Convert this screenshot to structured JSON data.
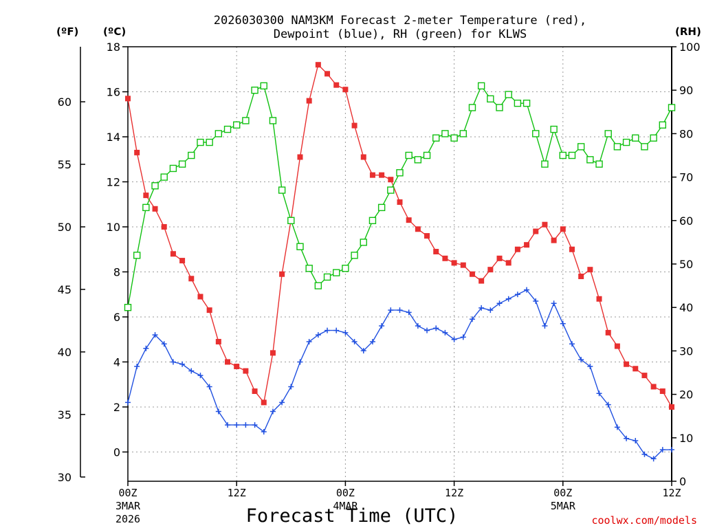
{
  "chart_data": {
    "type": "line",
    "title_line1": "2026030300 NAM3KM Forecast 2-meter Temperature (red),",
    "title_line2": "Dewpoint (blue), RH (green) for KLWS",
    "xlabel": "Forecast Time (UTC)",
    "credit": "coolwx.com/models",
    "units": {
      "fahrenheit": "(ºF)",
      "celsius": "(ºC)",
      "rh": "(RH)"
    },
    "x_range": [
      0,
      60
    ],
    "celsius_range": [
      -1.3,
      18
    ],
    "celsius_ticks": [
      "0",
      "2",
      "4",
      "6",
      "8",
      "10",
      "12",
      "14",
      "16",
      "18"
    ],
    "fahrenheit_ticks": [
      "30",
      "35",
      "40",
      "45",
      "50",
      "55",
      "60"
    ],
    "rh_range": [
      0,
      100
    ],
    "rh_ticks": [
      "0",
      "10",
      "20",
      "30",
      "40",
      "50",
      "60",
      "70",
      "80",
      "90",
      "100"
    ],
    "x_ticks": [
      {
        "hour": 0,
        "label": "00Z",
        "date": "3MAR",
        "year": "2026"
      },
      {
        "hour": 12,
        "label": "12Z",
        "date": "",
        "year": ""
      },
      {
        "hour": 24,
        "label": "00Z",
        "date": "4MAR",
        "year": ""
      },
      {
        "hour": 36,
        "label": "12Z",
        "date": "",
        "year": ""
      },
      {
        "hour": 48,
        "label": "00Z",
        "date": "5MAR",
        "year": ""
      },
      {
        "hour": 60,
        "label": "12Z",
        "date": "",
        "year": ""
      }
    ],
    "series": [
      {
        "name": "Temperature",
        "unit": "C",
        "color": "#e83030",
        "marker": "filled-square",
        "values": [
          15.7,
          13.3,
          11.4,
          10.8,
          10.0,
          8.8,
          8.5,
          7.7,
          6.9,
          6.3,
          4.9,
          4.0,
          3.8,
          3.6,
          2.7,
          2.2,
          4.4,
          7.9,
          10.3,
          13.1,
          15.6,
          17.2,
          16.8,
          16.3,
          16.1,
          14.5,
          13.1,
          12.3,
          12.3,
          12.1,
          11.1,
          10.3,
          9.9,
          9.6,
          8.9,
          8.6,
          8.4,
          8.3,
          7.9,
          7.6,
          8.1,
          8.6,
          8.4,
          9.0,
          9.2,
          9.8,
          10.1,
          9.4,
          9.9,
          9.0,
          7.8,
          8.1,
          6.8,
          5.3,
          4.7,
          3.9,
          3.7,
          3.4,
          2.9,
          2.7,
          2.0
        ]
      },
      {
        "name": "Dewpoint",
        "unit": "C",
        "color": "#2050e0",
        "marker": "plus",
        "values": [
          2.2,
          3.8,
          4.6,
          5.2,
          4.8,
          4.0,
          3.9,
          3.6,
          3.4,
          2.9,
          1.8,
          1.2,
          1.2,
          1.2,
          1.2,
          0.9,
          1.8,
          2.2,
          2.9,
          4.0,
          4.9,
          5.2,
          5.4,
          5.4,
          5.3,
          4.9,
          4.5,
          4.9,
          5.6,
          6.3,
          6.3,
          6.2,
          5.6,
          5.4,
          5.5,
          5.3,
          5.0,
          5.1,
          5.9,
          6.4,
          6.3,
          6.6,
          6.8,
          7.0,
          7.2,
          6.7,
          5.6,
          6.6,
          5.7,
          4.8,
          4.1,
          3.8,
          2.6,
          2.1,
          1.1,
          0.6,
          0.5,
          -0.1,
          -0.3,
          0.1,
          0.1
        ]
      },
      {
        "name": "RH",
        "unit": "%",
        "color": "#10c010",
        "marker": "open-square",
        "values": [
          40,
          52,
          63,
          68,
          70,
          72,
          73,
          75,
          78,
          78,
          80,
          81,
          82,
          83,
          90,
          91,
          83,
          67,
          60,
          54,
          49,
          45,
          47,
          48,
          49,
          52,
          55,
          60,
          63,
          67,
          71,
          75,
          74,
          75,
          79,
          80,
          79,
          80,
          86,
          91,
          88,
          86,
          89,
          87,
          87,
          80,
          73,
          81,
          75,
          75,
          77,
          74,
          73,
          80,
          77,
          78,
          79,
          77,
          79,
          82,
          86
        ]
      }
    ]
  }
}
